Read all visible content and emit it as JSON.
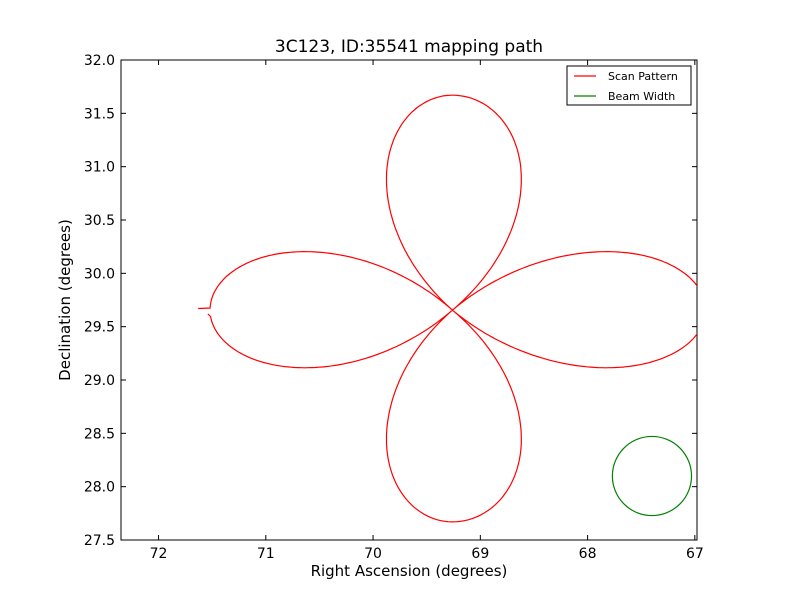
{
  "chart_data": {
    "type": "line",
    "title": "3C123, ID:35541 mapping path",
    "xlabel": "Right Ascension (degrees)",
    "ylabel": "Declination (degrees)",
    "xlim": [
      72.35,
      66.98
    ],
    "ylim": [
      27.5,
      32.0
    ],
    "x_inverted": true,
    "xticks": [
      72,
      71,
      70,
      69,
      68,
      67
    ],
    "yticks": [
      27.5,
      28.0,
      28.5,
      29.0,
      29.5,
      30.0,
      30.5,
      31.0,
      31.5,
      32.0
    ],
    "xtick_labels": [
      "72",
      "71",
      "70",
      "69",
      "68",
      "67"
    ],
    "ytick_labels": [
      "27.5",
      "28.0",
      "28.5",
      "29.0",
      "29.5",
      "30.0",
      "30.5",
      "31.0",
      "31.5",
      "32.0"
    ],
    "grid": false,
    "legend_position": "top-right",
    "series": [
      {
        "name": "Scan Pattern",
        "color": "#ff0000",
        "kind": "rose-curve",
        "center": [
          69.26,
          29.655
        ],
        "petals": [
          {
            "direction": "west",
            "tip": [
              71.62,
              29.655
            ],
            "half_width_dec": 0.555
          },
          {
            "direction": "east",
            "tip": [
              67.0,
              29.655
            ],
            "half_width_dec": 0.555
          },
          {
            "direction": "north",
            "tip": [
              69.26,
              31.67
            ],
            "half_width_ra": 0.62
          },
          {
            "direction": "south",
            "tip": [
              69.26,
              27.67
            ],
            "half_width_ra": 0.62
          }
        ],
        "start_point": [
          71.54,
          29.62
        ],
        "end_point": [
          71.63,
          29.67
        ]
      },
      {
        "name": "Beam Width",
        "color": "#008000",
        "kind": "circle",
        "center": [
          67.4,
          28.1
        ],
        "radius": 0.37
      }
    ]
  }
}
